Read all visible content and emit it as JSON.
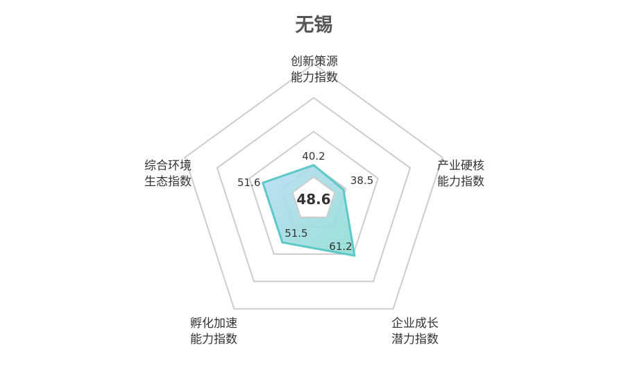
{
  "chart_data": {
    "type": "radar",
    "title": "无锡",
    "center_value": "48.6",
    "axes": [
      {
        "name_lines": [
          "创新策源",
          "能力指数"
        ],
        "value": 40.2,
        "value_label": "40.2"
      },
      {
        "name_lines": [
          "产业硬核",
          "能力指数"
        ],
        "value": 38.5,
        "value_label": "38.5"
      },
      {
        "name_lines": [
          "企业成长",
          "潜力指数"
        ],
        "value": 61.2,
        "value_label": "61.2"
      },
      {
        "name_lines": [
          "孵化加速",
          "能力指数"
        ],
        "value": 51.5,
        "value_label": "51.5"
      },
      {
        "name_lines": [
          "综合环境",
          "生态指数"
        ],
        "value": 51.6,
        "value_label": "51.6"
      }
    ],
    "rmin": 20,
    "rmax": 100,
    "grid_levels": [
      20,
      40,
      60,
      80,
      100
    ],
    "colors": {
      "grid": "#cccccc",
      "series_line": "#5ec8c8",
      "series_fill_start": "#b6dcf2",
      "series_fill_end": "#8fdcd2",
      "text": "#333333",
      "title": "#555555"
    }
  }
}
